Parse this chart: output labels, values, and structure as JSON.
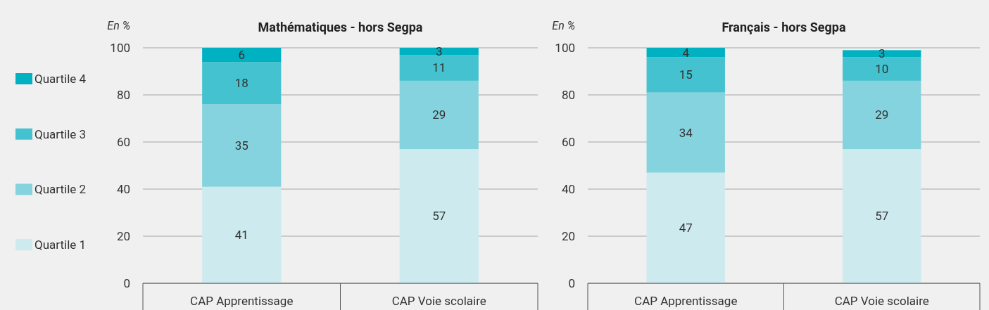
{
  "chart_data": [
    {
      "type": "bar",
      "title": "Mathématiques - hors Segpa",
      "ylabel": "En %",
      "categories": [
        "CAP Apprentissage",
        "CAP Voie scolaire"
      ],
      "stacked": true,
      "ylim": [
        0,
        100
      ],
      "yticks": [
        0,
        20,
        40,
        60,
        80,
        100
      ],
      "grid": "y",
      "legend": "left",
      "data_labels": true,
      "series": [
        {
          "name": "Quartile 1",
          "color": "#cdeaee",
          "values": [
            41,
            57
          ]
        },
        {
          "name": "Quartile 2",
          "color": "#85d3de",
          "values": [
            35,
            29
          ]
        },
        {
          "name": "Quartile 3",
          "color": "#45c2d0",
          "values": [
            18,
            11
          ]
        },
        {
          "name": "Quartile 4",
          "color": "#00b1c1",
          "values": [
            6,
            3
          ]
        }
      ]
    },
    {
      "type": "bar",
      "title": "Français - hors Segpa",
      "ylabel": "En %",
      "categories": [
        "CAP Apprentissage",
        "CAP Voie scolaire"
      ],
      "stacked": true,
      "ylim": [
        0,
        100
      ],
      "yticks": [
        0,
        20,
        40,
        60,
        80,
        100
      ],
      "grid": "y",
      "data_labels": true,
      "series": [
        {
          "color": "#cdeaee",
          "values": [
            47,
            57
          ]
        },
        {
          "color": "#85d3de",
          "values": [
            34,
            29
          ]
        },
        {
          "color": "#45c2d0",
          "values": [
            15,
            10
          ]
        },
        {
          "color": "#00b1c1",
          "values": [
            4,
            3
          ]
        }
      ]
    }
  ]
}
